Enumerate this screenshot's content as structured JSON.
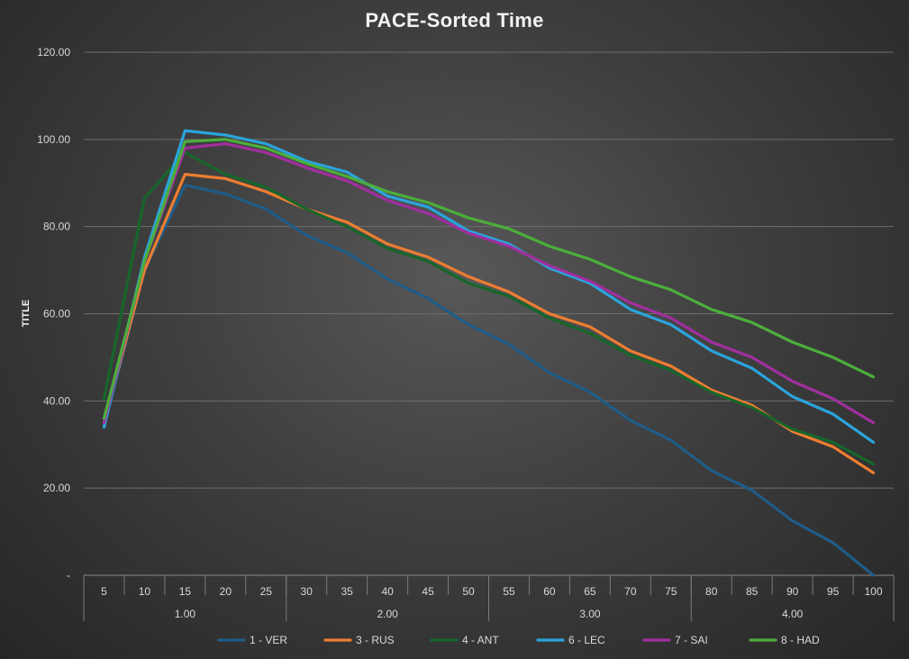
{
  "chart_data": {
    "type": "line",
    "title": "PACE-Sorted Time",
    "ylabel": "TITLE",
    "xlabel": "",
    "ylim": [
      0,
      120
    ],
    "y_ticks": [
      "-",
      "20.00",
      "40.00",
      "60.00",
      "80.00",
      "100.00",
      "120.00"
    ],
    "y_tick_values": [
      0,
      20,
      40,
      60,
      80,
      100,
      120
    ],
    "x": [
      "5",
      "10",
      "15",
      "20",
      "25",
      "30",
      "35",
      "40",
      "45",
      "50",
      "55",
      "60",
      "65",
      "70",
      "75",
      "80",
      "85",
      "90",
      "95",
      "100"
    ],
    "groups": [
      {
        "label": "1.00",
        "count": 5
      },
      {
        "label": "2.00",
        "count": 5
      },
      {
        "label": "3.00",
        "count": 5
      },
      {
        "label": "4.00",
        "count": 5
      }
    ],
    "grid": true,
    "legend": "bottom",
    "series": [
      {
        "name": "1 - VER",
        "color": "#1f5c88",
        "values": [
          34,
          70,
          89.5,
          87.5,
          84,
          78,
          74,
          68,
          63.5,
          57.5,
          53,
          46.5,
          42,
          35.5,
          31,
          24,
          19.5,
          12.5,
          7.5,
          0
        ]
      },
      {
        "name": "3 - RUS",
        "color": "#ed7d31",
        "values": [
          35,
          70,
          92,
          91,
          88,
          84,
          81,
          76,
          73,
          68.5,
          65,
          60,
          57,
          51.5,
          48,
          42.5,
          39,
          33,
          29.5,
          23.5
        ]
      },
      {
        "name": "4 - ANT",
        "color": "#17662b",
        "values": [
          40.5,
          86.5,
          97,
          92,
          89,
          84,
          80,
          75,
          72,
          67,
          64,
          59,
          55.5,
          50.5,
          47,
          42,
          38.5,
          33.5,
          30.5,
          25.5
        ]
      },
      {
        "name": "6 - LEC",
        "color": "#2aa4dc",
        "values": [
          34,
          73,
          102,
          101,
          99,
          95,
          92.5,
          87,
          84.5,
          79,
          76,
          70.5,
          67,
          61,
          57.5,
          51.5,
          47.5,
          41,
          37,
          30.5
        ]
      },
      {
        "name": "7 - SAI",
        "color": "#a02f9e",
        "values": [
          35,
          72,
          98,
          99,
          97,
          93.5,
          90.5,
          86,
          83,
          78.5,
          75.5,
          71,
          67.5,
          62.5,
          59,
          53.5,
          50,
          44.5,
          40.5,
          35
        ]
      },
      {
        "name": "8 - HAD",
        "color": "#4cae3c",
        "values": [
          36,
          72,
          99.5,
          100,
          98,
          94.5,
          91.5,
          88,
          85.5,
          82,
          79.5,
          75.5,
          72.5,
          68.5,
          65.5,
          61,
          58,
          53.5,
          50,
          45.5
        ]
      }
    ]
  }
}
